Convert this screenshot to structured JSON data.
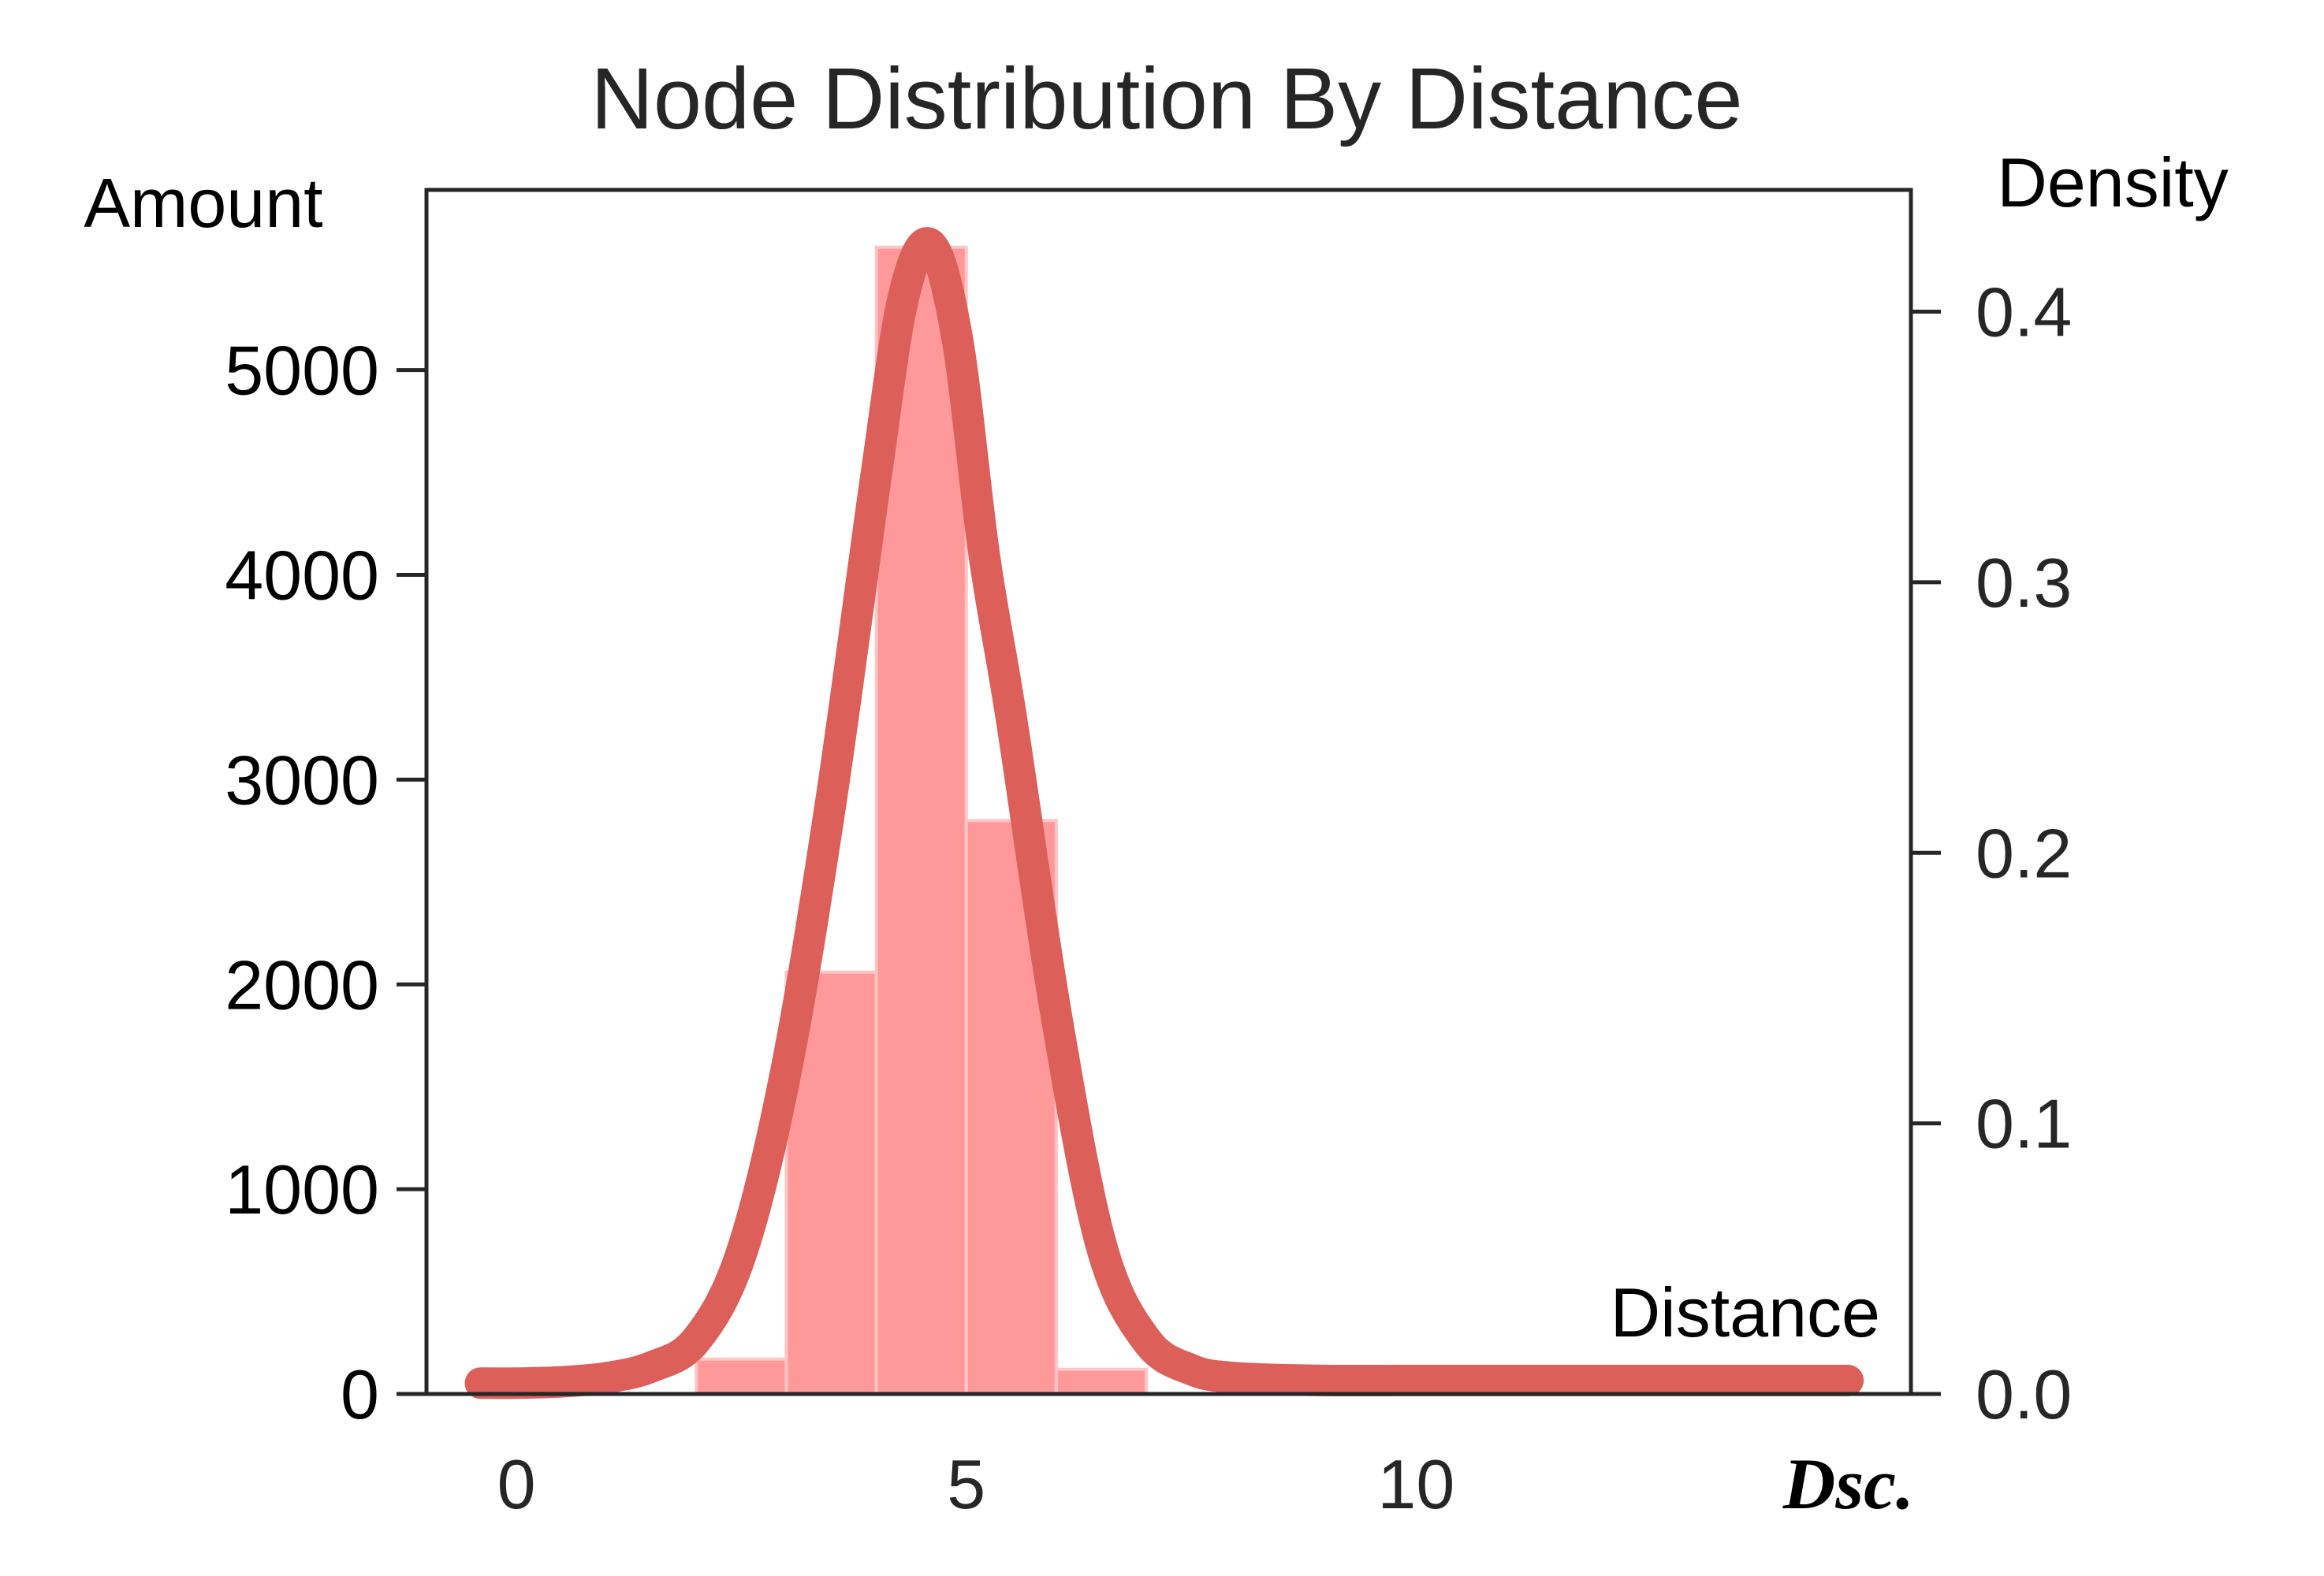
{
  "chart_data": {
    "type": "bar",
    "title": "Node Distribution By Distance",
    "ylabel_left": "Amount",
    "ylabel_right": "Density",
    "xlabel": "Distance",
    "x_axis_tag": "Dsc.",
    "xlim": [
      -1,
      15.5
    ],
    "ylim_left": [
      0,
      5880
    ],
    "ylim_right": [
      0,
      0.445
    ],
    "x_ticks": [
      0,
      5,
      10
    ],
    "x_tick_labels": [
      "0",
      "5",
      "10"
    ],
    "y_left_ticks": [
      0,
      1000,
      2000,
      3000,
      4000,
      5000
    ],
    "y_left_tick_labels": [
      "0",
      "1000",
      "2000",
      "3000",
      "4000",
      "5000"
    ],
    "y_right_ticks": [
      0.0,
      0.1,
      0.2,
      0.3,
      0.4
    ],
    "y_right_tick_labels": [
      "0.0",
      "0.1",
      "0.2",
      "0.3",
      "0.4"
    ],
    "histogram": {
      "bin_edges": [
        2,
        3,
        4,
        5,
        6,
        7
      ],
      "counts": [
        170,
        2060,
        5600,
        2800,
        120
      ]
    },
    "density_curve": {
      "x": [
        -0.4,
        0,
        0.5,
        1,
        1.5,
        2,
        2.5,
        3,
        3.5,
        4,
        4.3,
        4.6,
        4.9,
        5.2,
        5.5,
        6,
        6.5,
        7,
        7.5,
        8,
        9,
        10,
        11,
        12,
        13,
        14,
        14.8
      ],
      "y": [
        0.004,
        0.004,
        0.0045,
        0.006,
        0.01,
        0.02,
        0.052,
        0.12,
        0.22,
        0.34,
        0.405,
        0.425,
        0.39,
        0.31,
        0.25,
        0.14,
        0.055,
        0.02,
        0.009,
        0.006,
        0.005,
        0.005,
        0.005,
        0.005,
        0.005,
        0.005,
        0.005
      ]
    },
    "grid": false,
    "colors": {
      "bars": "#ff9999",
      "bar_edge": "#ffc4c4",
      "curve": "#dc5f5a"
    }
  }
}
